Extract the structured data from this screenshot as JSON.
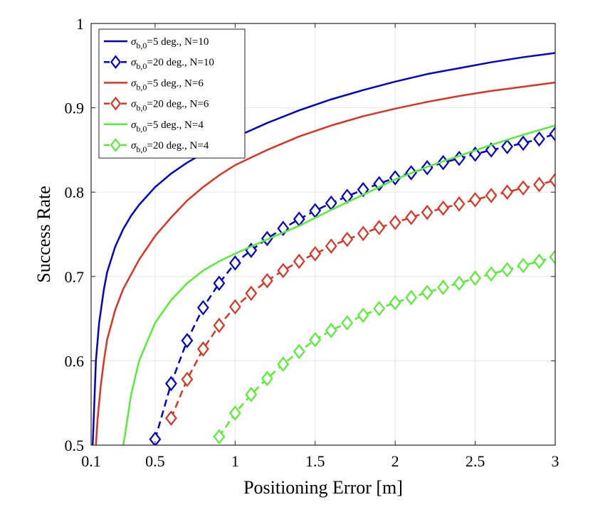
{
  "chart_data": {
    "type": "line",
    "xlabel": "Positioning Error [m]",
    "ylabel": "Success Rate",
    "xlim": [
      0.1,
      3
    ],
    "ylim": [
      0.5,
      1
    ],
    "xticks": [
      0.1,
      0.5,
      1,
      1.5,
      2,
      2.5,
      3
    ],
    "xtick_labels": [
      "0.1",
      "0.5",
      "1",
      "1.5",
      "2",
      "2.5",
      "3"
    ],
    "yticks": [
      0.5,
      0.6,
      0.7,
      0.8,
      0.9,
      1
    ],
    "ytick_labels": [
      "0.5",
      "0.6",
      "0.7",
      "0.8",
      "0.9",
      "1"
    ],
    "grid": true,
    "legend_position": "top-left",
    "series": [
      {
        "name": "σb,0=5 deg., N=10",
        "legend": {
          "sym": "σ",
          "sub": "b,0",
          "rest": "=5 deg., N=10"
        },
        "color": "#0000cc",
        "style": "solid",
        "marker": "none",
        "x": [
          0.11,
          0.12,
          0.13,
          0.15,
          0.18,
          0.2,
          0.25,
          0.3,
          0.35,
          0.4,
          0.5,
          0.6,
          0.7,
          0.8,
          0.9,
          1.0,
          1.2,
          1.4,
          1.6,
          1.8,
          2.0,
          2.2,
          2.4,
          2.6,
          2.8,
          3.0
        ],
        "y": [
          0.5,
          0.55,
          0.6,
          0.645,
          0.685,
          0.705,
          0.735,
          0.756,
          0.772,
          0.785,
          0.806,
          0.822,
          0.835,
          0.846,
          0.856,
          0.865,
          0.882,
          0.897,
          0.91,
          0.921,
          0.931,
          0.94,
          0.947,
          0.954,
          0.96,
          0.965
        ]
      },
      {
        "name": "σb,0=20 deg., N=10",
        "legend": {
          "sym": "σ",
          "sub": "b,0",
          "rest": "=20 deg., N=10"
        },
        "color": "#0000cc",
        "style": "dashed",
        "marker": "diamond",
        "x": [
          0.5,
          0.6,
          0.7,
          0.8,
          0.9,
          1.0,
          1.1,
          1.2,
          1.3,
          1.4,
          1.5,
          1.6,
          1.7,
          1.8,
          1.9,
          2.0,
          2.1,
          2.2,
          2.3,
          2.4,
          2.5,
          2.6,
          2.7,
          2.8,
          2.9,
          3.0
        ],
        "y": [
          0.507,
          0.573,
          0.624,
          0.663,
          0.692,
          0.716,
          0.731,
          0.745,
          0.757,
          0.768,
          0.778,
          0.787,
          0.795,
          0.803,
          0.81,
          0.817,
          0.823,
          0.829,
          0.835,
          0.84,
          0.845,
          0.85,
          0.854,
          0.858,
          0.863,
          0.869
        ]
      },
      {
        "name": "σb,0=5 deg., N=6",
        "legend": {
          "sym": "σ",
          "sub": "b,0",
          "rest": "=5 deg., N=6"
        },
        "color": "#dd3322",
        "style": "solid",
        "marker": "none",
        "x": [
          0.13,
          0.14,
          0.16,
          0.18,
          0.2,
          0.25,
          0.3,
          0.4,
          0.5,
          0.6,
          0.7,
          0.8,
          0.9,
          1.0,
          1.2,
          1.4,
          1.6,
          1.8,
          2.0,
          2.2,
          2.4,
          2.6,
          2.8,
          3.0
        ],
        "y": [
          0.5,
          0.53,
          0.57,
          0.6,
          0.625,
          0.66,
          0.685,
          0.72,
          0.748,
          0.77,
          0.79,
          0.806,
          0.82,
          0.832,
          0.85,
          0.866,
          0.879,
          0.89,
          0.899,
          0.907,
          0.914,
          0.92,
          0.925,
          0.93
        ]
      },
      {
        "name": "σb,0=20 deg., N=6",
        "legend": {
          "sym": "σ",
          "sub": "b,0",
          "rest": "=20 deg., N=6"
        },
        "color": "#dd3322",
        "style": "dashed",
        "marker": "diamond",
        "x": [
          0.6,
          0.7,
          0.8,
          0.9,
          1.0,
          1.1,
          1.2,
          1.3,
          1.4,
          1.5,
          1.6,
          1.7,
          1.8,
          1.9,
          2.0,
          2.1,
          2.2,
          2.3,
          2.4,
          2.5,
          2.6,
          2.7,
          2.8,
          2.9,
          3.0
        ],
        "y": [
          0.532,
          0.578,
          0.614,
          0.642,
          0.664,
          0.68,
          0.695,
          0.707,
          0.718,
          0.727,
          0.736,
          0.744,
          0.751,
          0.758,
          0.764,
          0.77,
          0.776,
          0.781,
          0.786,
          0.791,
          0.796,
          0.8,
          0.805,
          0.809,
          0.814
        ]
      },
      {
        "name": "σb,0=5 deg., N=4",
        "legend": {
          "sym": "σ",
          "sub": "b,0",
          "rest": "=5 deg., N=4"
        },
        "color": "#55ee33",
        "style": "solid",
        "marker": "none",
        "x": [
          0.3,
          0.31,
          0.35,
          0.4,
          0.5,
          0.6,
          0.7,
          0.8,
          0.9,
          1.0,
          1.2,
          1.4,
          1.6,
          1.8,
          2.0,
          2.2,
          2.4,
          2.6,
          2.8,
          3.0
        ],
        "y": [
          0.5,
          0.51,
          0.56,
          0.6,
          0.645,
          0.672,
          0.692,
          0.707,
          0.718,
          0.727,
          0.744,
          0.76,
          0.779,
          0.797,
          0.815,
          0.83,
          0.843,
          0.856,
          0.868,
          0.879
        ]
      },
      {
        "name": "σb,0=20 deg., N=4",
        "legend": {
          "sym": "σ",
          "sub": "b,0",
          "rest": "=20 deg., N=4"
        },
        "color": "#55ee33",
        "style": "dashed",
        "marker": "diamond",
        "x": [
          0.9,
          1.0,
          1.1,
          1.2,
          1.3,
          1.4,
          1.5,
          1.6,
          1.7,
          1.8,
          1.9,
          2.0,
          2.1,
          2.2,
          2.3,
          2.4,
          2.5,
          2.6,
          2.7,
          2.8,
          2.9,
          3.0
        ],
        "y": [
          0.51,
          0.538,
          0.56,
          0.579,
          0.596,
          0.611,
          0.625,
          0.636,
          0.645,
          0.654,
          0.662,
          0.669,
          0.675,
          0.681,
          0.687,
          0.692,
          0.698,
          0.703,
          0.708,
          0.713,
          0.718,
          0.723
        ]
      }
    ]
  }
}
